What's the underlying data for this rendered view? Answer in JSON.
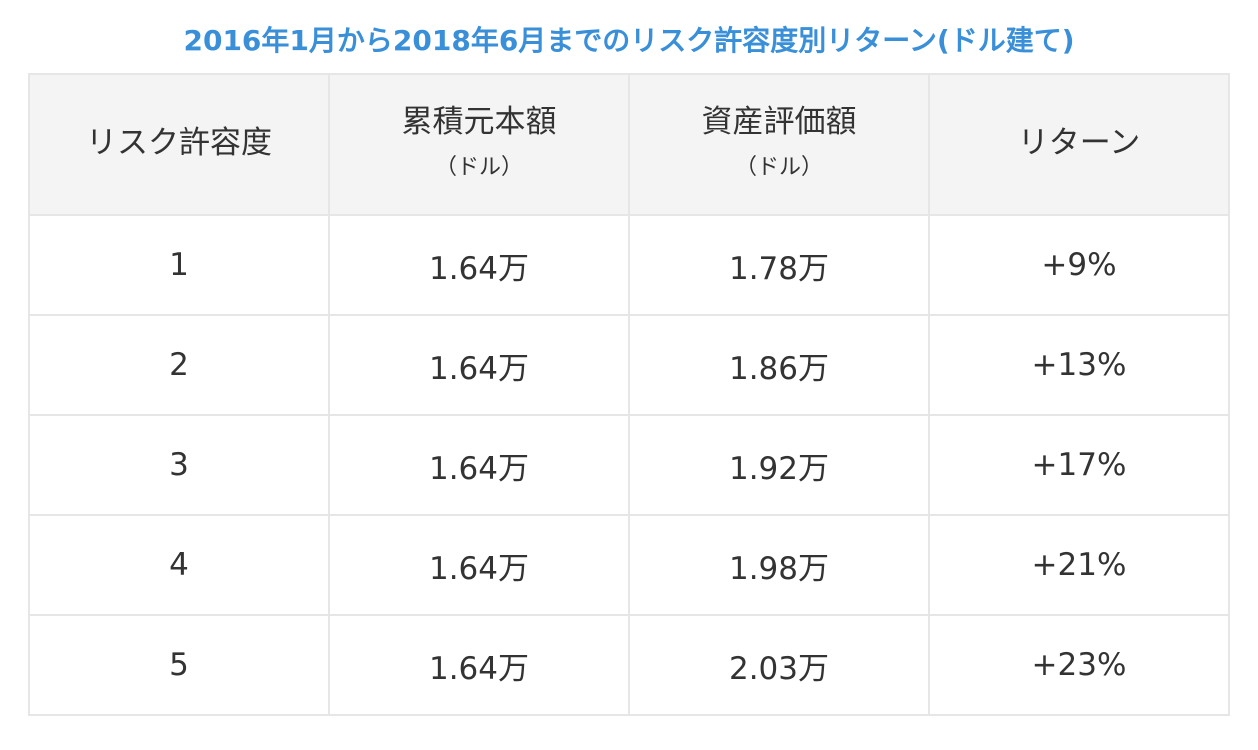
{
  "title": "2016年1月から2018年6月までのリスク許容度別リターン(ドル建て)",
  "headers": [
    {
      "main": "リスク許容度",
      "small": ""
    },
    {
      "main": "累積元本額",
      "small": "（ドル）"
    },
    {
      "main": "資産評価額",
      "small": "（ドル）"
    },
    {
      "main": "リターン",
      "small": ""
    }
  ],
  "rows": [
    {
      "risk": "1",
      "principal": "1.64万",
      "valuation": "1.78万",
      "return": "+9%"
    },
    {
      "risk": "2",
      "principal": "1.64万",
      "valuation": "1.86万",
      "return": "+13%"
    },
    {
      "risk": "3",
      "principal": "1.64万",
      "valuation": "1.92万",
      "return": "+17%"
    },
    {
      "risk": "4",
      "principal": "1.64万",
      "valuation": "1.98万",
      "return": "+21%"
    },
    {
      "risk": "5",
      "principal": "1.64万",
      "valuation": "2.03万",
      "return": "+23%"
    }
  ]
}
